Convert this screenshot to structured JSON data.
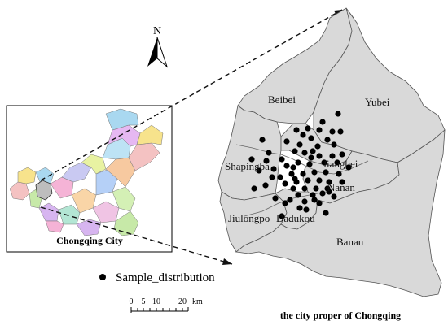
{
  "north_arrow": {
    "label": "N",
    "icon": "north-arrow-icon"
  },
  "inset": {
    "caption": "Chongqing City",
    "region_colors": [
      "#f4c2c2",
      "#f7e38c",
      "#c7e9a8",
      "#a9d8f0",
      "#d7b5f0",
      "#f5b3d6",
      "#b3e6d4",
      "#f9d5a7",
      "#c9c9f2",
      "#e8f2a2",
      "#b5d0f7",
      "#f0c4e4",
      "#d4f0b5",
      "#f7c9a0",
      "#bde3f5",
      "#e6b8f2"
    ]
  },
  "main_map": {
    "caption": "the city proper of Chongqing",
    "district_labels": {
      "beibei": "Beibei",
      "yubei": "Yubei",
      "shapingba": "Shapingba",
      "jiangbei": "Jiangbei",
      "nanan": "Nanan",
      "jiulongpo": "Jiulongpo",
      "dadukou": "Dadukou",
      "banan": "Banan"
    },
    "fill_color": "#d9d9d9",
    "sample_point_color": "#000000"
  },
  "legend": {
    "label": "Sample_distribution",
    "symbol": "black-dot"
  },
  "scale_bar": {
    "ticks": [
      "0",
      "5",
      "10",
      "20"
    ],
    "unit": "km"
  }
}
